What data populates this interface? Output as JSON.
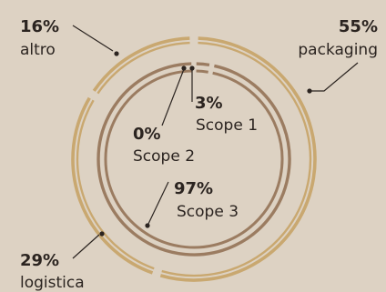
{
  "chart_data": [
    {
      "type": "donut",
      "ring": "outer",
      "series": [
        {
          "values": [
            {
              "label": "packaging",
              "value": 55,
              "display": "55%",
              "color": "#c9a870"
            },
            {
              "label": "logistica",
              "value": 29,
              "display": "29%",
              "color": "#c9a870"
            },
            {
              "label": "altro",
              "value": 16,
              "display": "16%",
              "color": "#c9a870"
            }
          ]
        }
      ]
    },
    {
      "type": "donut",
      "ring": "inner",
      "series": [
        {
          "values": [
            {
              "label": "Scope 1",
              "value": 3,
              "display": "3%",
              "color": "#9b7c61"
            },
            {
              "label": "Scope 2",
              "value": 0,
              "display": "0%",
              "color": "#9b7c61"
            },
            {
              "label": "Scope 3",
              "value": 97,
              "display": "97%",
              "color": "#9b7c61"
            }
          ]
        }
      ]
    }
  ]
}
